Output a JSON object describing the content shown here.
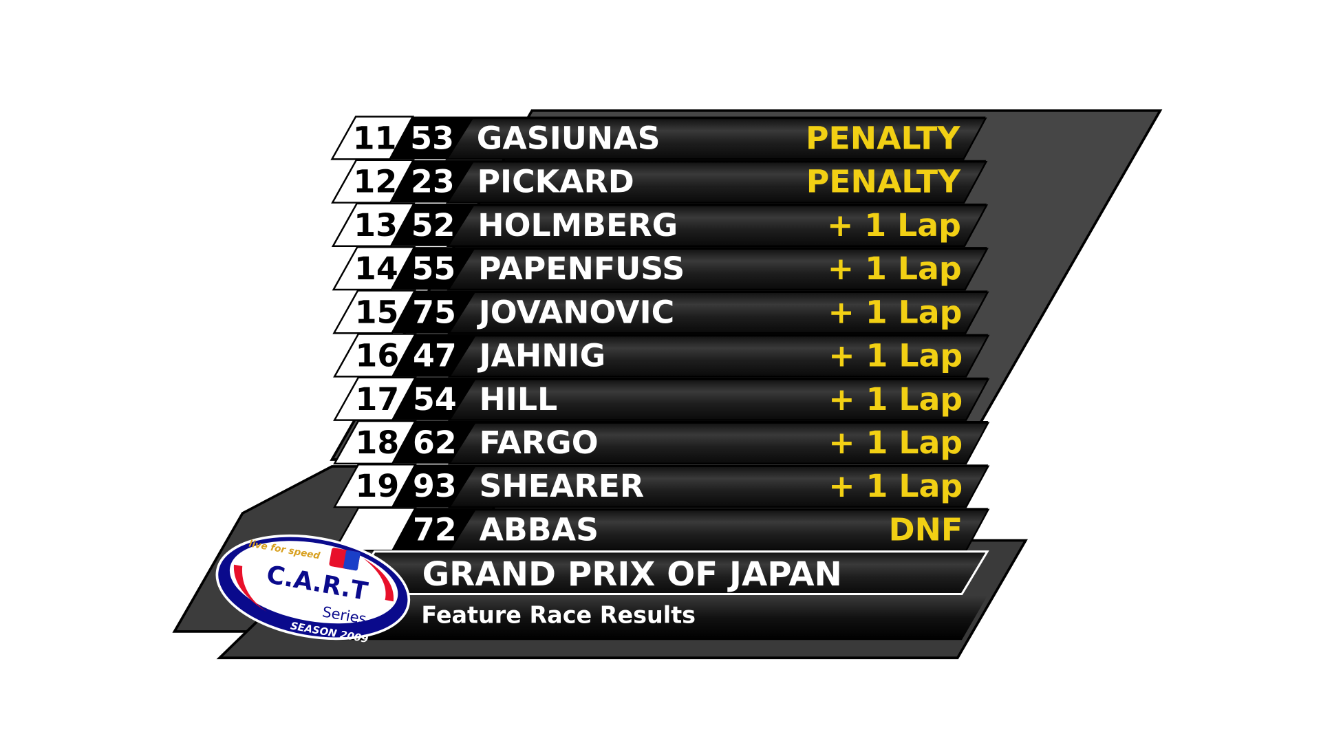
{
  "results": [
    {
      "position": "11",
      "number": "53",
      "name": "GASIUNAS",
      "status": "PENALTY"
    },
    {
      "position": "12",
      "number": "23",
      "name": "PICKARD",
      "status": "PENALTY"
    },
    {
      "position": "13",
      "number": "52",
      "name": "HOLMBERG",
      "status": "+ 1 Lap"
    },
    {
      "position": "14",
      "number": "55",
      "name": "PAPENFUSS",
      "status": "+ 1 Lap"
    },
    {
      "position": "15",
      "number": "75",
      "name": "JOVANOVIC",
      "status": "+ 1 Lap"
    },
    {
      "position": "16",
      "number": "47",
      "name": "JAHNIG",
      "status": "+ 1 Lap"
    },
    {
      "position": "17",
      "number": "54",
      "name": "HILL",
      "status": "+ 1 Lap"
    },
    {
      "position": "18",
      "number": "62",
      "name": "FARGO",
      "status": "+ 1 Lap"
    },
    {
      "position": "19",
      "number": "93",
      "name": "SHEARER",
      "status": "+ 1 Lap"
    },
    {
      "position": "",
      "number": "72",
      "name": "ABBAS",
      "status": "DNF"
    }
  ],
  "event": {
    "title": "GRAND PRIX OF JAPAN",
    "subtitle": "Feature Race Results"
  },
  "logo": {
    "brand": "live for speed",
    "name": "C.A.R.T",
    "series": "Series",
    "season": "SEASON 2009"
  },
  "colors": {
    "status_text": "#f2d014",
    "panel": "#464646",
    "bar": "#1c1c1c",
    "logo_blue": "#0a0a8c",
    "logo_red": "#e8102a"
  }
}
